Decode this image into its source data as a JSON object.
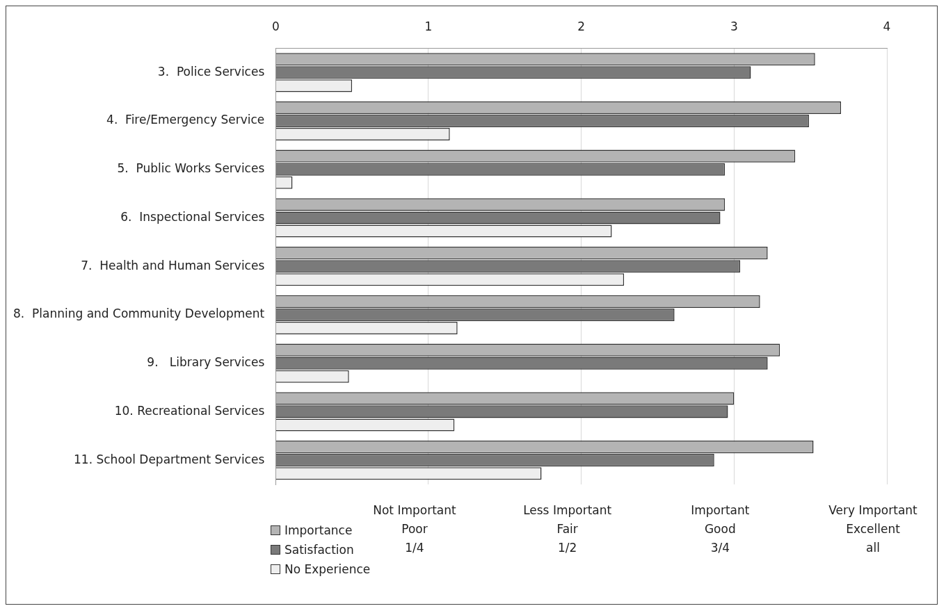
{
  "chart_data": {
    "type": "bar",
    "orientation": "horizontal",
    "categories": [
      "3.  Police Services",
      "4.  Fire/Emergency Service",
      "5.  Public Works Services",
      "6.  Inspectional Services",
      "7.  Health and Human Services",
      "8.  Planning and Community Development",
      "9.   Library Services",
      "10. Recreational Services",
      "11. School Department Services"
    ],
    "series": [
      {
        "name": "Importance",
        "color": "#b4b4b4",
        "values": [
          3.53,
          3.7,
          3.4,
          2.94,
          3.22,
          3.17,
          3.3,
          3.0,
          3.52
        ]
      },
      {
        "name": "Satisfaction",
        "color": "#7a7a7a",
        "values": [
          3.11,
          3.49,
          2.94,
          2.91,
          3.04,
          2.61,
          3.22,
          2.96,
          2.87
        ]
      },
      {
        "name": "No Experience",
        "color": "#eeeeee",
        "values": [
          0.5,
          1.14,
          0.11,
          2.2,
          2.28,
          1.19,
          0.48,
          1.17,
          1.74
        ]
      }
    ],
    "xlim": [
      0,
      4
    ],
    "xticks": [
      0,
      1,
      2,
      3,
      4
    ],
    "grid": "x",
    "legend": "bottom left",
    "annotations": [
      "Not Important\nPoor\n1/4",
      "Less Important\nFair\n1/2",
      "Important\nGood\n3/4",
      "Very Important\nExcellent\nall"
    ]
  }
}
